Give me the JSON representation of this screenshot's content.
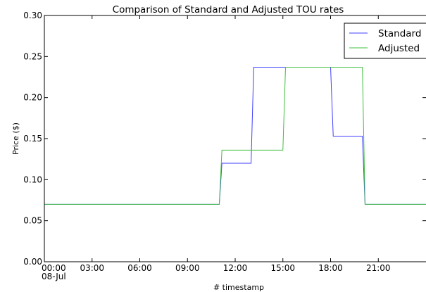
{
  "chart_data": {
    "type": "line",
    "title": "Comparison of Standard and Adjusted TOU rates",
    "xlabel": "# timestamp",
    "ylabel": "Price ($)",
    "xlim": [
      "00:00",
      "24:00"
    ],
    "ylim": [
      0.0,
      0.3
    ],
    "yticks": [
      "0.00",
      "0.05",
      "0.10",
      "0.15",
      "0.20",
      "0.25",
      "0.30"
    ],
    "xticks": [
      "00:00",
      "03:00",
      "06:00",
      "09:00",
      "12:00",
      "15:00",
      "18:00",
      "21:00"
    ],
    "x_date_label": "08-Jul",
    "grid": false,
    "legend_position": "top-right",
    "series": [
      {
        "name": "Standard",
        "color": "#3f3fff",
        "x": [
          "00:00",
          "11:00",
          "11:10",
          "13:00",
          "13:10",
          "18:00",
          "18:10",
          "20:00",
          "20:10",
          "24:00"
        ],
        "y": [
          0.07,
          0.07,
          0.12,
          0.12,
          0.237,
          0.237,
          0.153,
          0.153,
          0.07,
          0.07
        ]
      },
      {
        "name": "Adjusted",
        "color": "#3fbf3f",
        "x": [
          "00:00",
          "11:00",
          "11:10",
          "15:00",
          "15:10",
          "20:00",
          "20:10",
          "24:00"
        ],
        "y": [
          0.07,
          0.07,
          0.136,
          0.136,
          0.237,
          0.237,
          0.07,
          0.07
        ]
      }
    ]
  }
}
